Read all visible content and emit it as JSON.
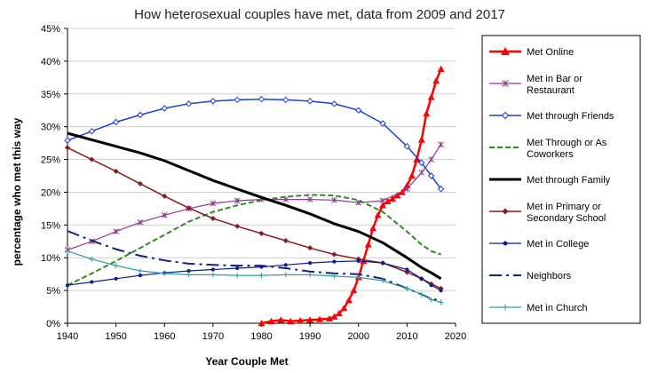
{
  "chart_data": {
    "type": "line",
    "title": "How heterosexual couples have met, data from 2009 and 2017",
    "xlabel": "Year Couple Met",
    "ylabel": "percentage who met this way",
    "xlim": [
      1940,
      2020
    ],
    "ylim": [
      0,
      45
    ],
    "x_ticks": [
      "1940",
      "1950",
      "1960",
      "1970",
      "1980",
      "1990",
      "2000",
      "2010",
      "2020"
    ],
    "y_ticks": [
      "0%",
      "5%",
      "10%",
      "15%",
      "20%",
      "25%",
      "30%",
      "35%",
      "40%",
      "45%"
    ],
    "grid": "horizontal",
    "legend_position": "right",
    "series": [
      {
        "name": "Met Online",
        "color": "#ff0000",
        "marker": "triangle",
        "dash": "solid",
        "width": 2.5,
        "x": [
          1980,
          1982,
          1984,
          1986,
          1988,
          1990,
          1992,
          1994,
          1995,
          1996,
          1997,
          1998,
          1999,
          2000,
          2001,
          2002,
          2003,
          2004,
          2005,
          2006,
          2007,
          2008,
          2009,
          2010,
          2011,
          2012,
          2013,
          2014,
          2015,
          2016,
          2017
        ],
        "y": [
          0,
          0.3,
          0.5,
          0.3,
          0.4,
          0.5,
          0.6,
          0.7,
          1.0,
          1.5,
          2.3,
          3.5,
          5.0,
          7.0,
          9.5,
          12.0,
          14.5,
          16.5,
          18.0,
          18.6,
          19.0,
          19.5,
          20.0,
          21.0,
          22.5,
          25.0,
          28.0,
          32.0,
          34.5,
          37.0,
          38.8
        ]
      },
      {
        "name": "Met in Bar or Restaurant",
        "color": "#8e3a8e",
        "marker": "star",
        "dash": "solid",
        "width": 1.2,
        "x": [
          1940,
          1945,
          1950,
          1955,
          1960,
          1965,
          1970,
          1975,
          1980,
          1985,
          1990,
          1995,
          2000,
          2005,
          2010,
          2013,
          2015,
          2017
        ],
        "y": [
          11.2,
          12.5,
          14.0,
          15.4,
          16.5,
          17.5,
          18.3,
          18.7,
          18.9,
          18.9,
          18.9,
          18.8,
          18.4,
          18.7,
          20.5,
          23.0,
          25.0,
          27.3
        ]
      },
      {
        "name": "Met through Friends",
        "color": "#1c3fd6",
        "marker": "diamond-open",
        "dash": "solid",
        "width": 1.5,
        "x": [
          1940,
          1945,
          1950,
          1955,
          1960,
          1965,
          1970,
          1975,
          1980,
          1985,
          1990,
          1995,
          2000,
          2005,
          2010,
          2013,
          2015,
          2017
        ],
        "y": [
          27.9,
          29.3,
          30.7,
          31.8,
          32.8,
          33.5,
          33.9,
          34.1,
          34.2,
          34.1,
          33.9,
          33.5,
          32.5,
          30.5,
          27.0,
          24.5,
          22.5,
          20.5
        ]
      },
      {
        "name": "Met Through or As Coworkers",
        "color": "#2e8b22",
        "marker": "none",
        "dash": "6,3",
        "width": 2,
        "x": [
          1940,
          1945,
          1950,
          1955,
          1960,
          1965,
          1970,
          1975,
          1980,
          1985,
          1990,
          1995,
          2000,
          2005,
          2010,
          2013,
          2015,
          2017
        ],
        "y": [
          5.8,
          7.6,
          9.5,
          11.5,
          13.5,
          15.5,
          17.0,
          18.0,
          18.8,
          19.3,
          19.6,
          19.5,
          18.8,
          17.0,
          14.0,
          12.0,
          11.0,
          10.5
        ]
      },
      {
        "name": "Met through Family",
        "color": "#000000",
        "marker": "none",
        "dash": "solid",
        "width": 3,
        "x": [
          1940,
          1945,
          1950,
          1955,
          1960,
          1965,
          1970,
          1975,
          1980,
          1985,
          1990,
          1995,
          2000,
          2005,
          2010,
          2013,
          2015,
          2017
        ],
        "y": [
          29.0,
          28.0,
          27.0,
          26.0,
          24.8,
          23.3,
          21.8,
          20.5,
          19.2,
          18.0,
          16.7,
          15.2,
          14.0,
          12.3,
          10.0,
          8.5,
          7.7,
          6.8
        ]
      },
      {
        "name": "Met in Primary or Secondary School",
        "color": "#8b1a1a",
        "marker": "diamond",
        "dash": "solid",
        "width": 1.5,
        "x": [
          1940,
          1945,
          1950,
          1955,
          1960,
          1965,
          1970,
          1975,
          1980,
          1985,
          1990,
          1995,
          2000,
          2005,
          2010,
          2013,
          2015,
          2017
        ],
        "y": [
          26.8,
          25.0,
          23.2,
          21.3,
          19.4,
          17.6,
          16.0,
          14.8,
          13.7,
          12.6,
          11.5,
          10.5,
          9.8,
          9.2,
          7.8,
          6.8,
          6.0,
          5.3
        ]
      },
      {
        "name": "Met in College",
        "color": "#0a1f8f",
        "marker": "dot",
        "dash": "solid",
        "width": 1.2,
        "x": [
          1940,
          1945,
          1950,
          1955,
          1960,
          1965,
          1970,
          1975,
          1980,
          1985,
          1990,
          1995,
          2000,
          2005,
          2010,
          2013,
          2015,
          2017
        ],
        "y": [
          5.8,
          6.3,
          6.8,
          7.3,
          7.7,
          8.0,
          8.2,
          8.4,
          8.6,
          8.9,
          9.2,
          9.4,
          9.5,
          9.2,
          8.2,
          6.8,
          5.8,
          5.0
        ]
      },
      {
        "name": "Neighbors",
        "color": "#12237a",
        "marker": "none",
        "dash": "14,5,3,5",
        "width": 2,
        "x": [
          1940,
          1945,
          1950,
          1955,
          1960,
          1965,
          1970,
          1975,
          1980,
          1985,
          1990,
          1995,
          2000,
          2005,
          2010,
          2013,
          2015,
          2017
        ],
        "y": [
          14.1,
          12.6,
          11.3,
          10.3,
          9.6,
          9.1,
          8.9,
          8.8,
          8.8,
          8.4,
          7.9,
          7.6,
          7.5,
          6.8,
          5.3,
          4.4,
          3.7,
          3.5
        ]
      },
      {
        "name": "Met in Church",
        "color": "#2a9ea0",
        "marker": "plus",
        "dash": "solid",
        "width": 1.2,
        "x": [
          1940,
          1945,
          1950,
          1955,
          1960,
          1965,
          1970,
          1975,
          1980,
          1985,
          1990,
          1995,
          2000,
          2005,
          2010,
          2013,
          2015,
          2017
        ],
        "y": [
          11.0,
          9.8,
          8.8,
          8.0,
          7.6,
          7.4,
          7.4,
          7.3,
          7.3,
          7.4,
          7.4,
          7.2,
          7.0,
          6.5,
          5.3,
          4.4,
          3.6,
          3.2
        ]
      }
    ]
  }
}
